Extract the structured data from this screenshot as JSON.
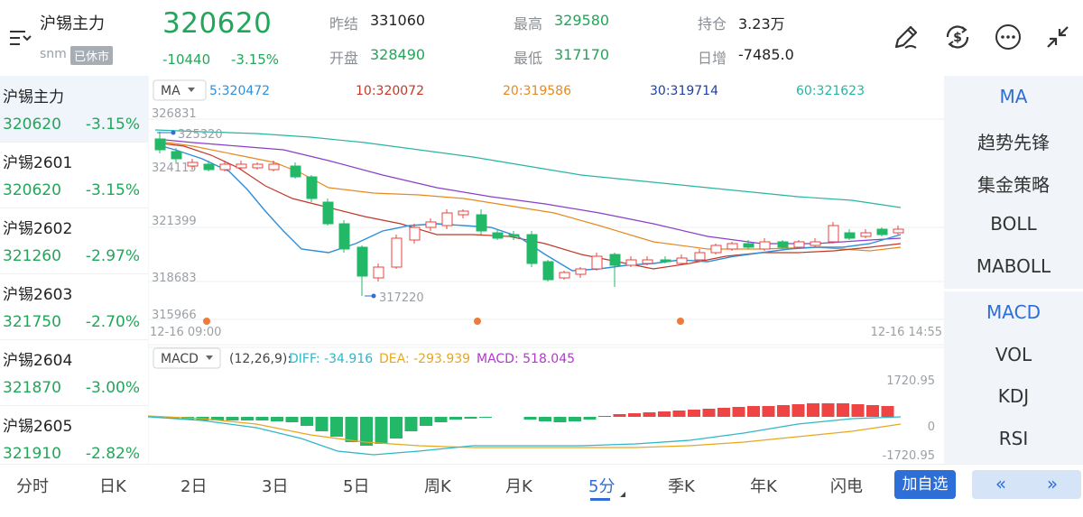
{
  "header": {
    "name": "沪锡主力",
    "symbol": "snm",
    "status_badge": "已休市",
    "price": "320620",
    "change": "-10440",
    "change_pct": "-3.15%",
    "stats": [
      {
        "label": "昨结",
        "value": "331060",
        "tone": "dark"
      },
      {
        "label": "最高",
        "value": "329580",
        "tone": "green"
      },
      {
        "label": "持仓",
        "value": "3.23万",
        "tone": "dark"
      },
      {
        "label": "开盘",
        "value": "328490",
        "tone": "green"
      },
      {
        "label": "最低",
        "value": "317170",
        "tone": "green"
      },
      {
        "label": "日增",
        "value": "-7485.0",
        "tone": "dark"
      }
    ]
  },
  "contracts": [
    {
      "name": "沪锡主力",
      "price": "320620",
      "pct": "-3.15%"
    },
    {
      "name": "沪锡2601",
      "price": "320620",
      "pct": "-3.15%"
    },
    {
      "name": "沪锡2602",
      "price": "321260",
      "pct": "-2.97%"
    },
    {
      "name": "沪锡2603",
      "price": "321750",
      "pct": "-2.70%"
    },
    {
      "name": "沪锡2604",
      "price": "321870",
      "pct": "-3.00%"
    },
    {
      "name": "沪锡2605",
      "price": "321910",
      "pct": "-2.82%"
    }
  ],
  "ma_bar": {
    "label": "MA",
    "items": [
      {
        "text": "5:320472",
        "color": "#2f8fd8"
      },
      {
        "text": "10:320072",
        "color": "#c0392b"
      },
      {
        "text": "20:319586",
        "color": "#e6891f"
      },
      {
        "text": "30:319714",
        "color": "#2040a0"
      },
      {
        "text": "60:321623",
        "color": "#26b5a3"
      }
    ]
  },
  "macd_bar": {
    "label": "MACD",
    "params": "(12,26,9):",
    "diff": "DIFF: -34.916",
    "dea": "DEA: -293.939",
    "macd": "MACD: 518.045"
  },
  "chart_data": {
    "type": "candlestick",
    "y_ticks": [
      "326831",
      "324115",
      "321399",
      "318683",
      "315966"
    ],
    "x_start": "12-16 09:00",
    "x_end": "12-16 14:55",
    "high_marker": "325320",
    "low_marker": "317220",
    "macd_ticks": [
      "1720.95",
      "0",
      "-1720.95"
    ],
    "colors": {
      "up": "#e8433f",
      "down": "#22b868",
      "ma5": "#2f8fd8",
      "ma10": "#c0392b",
      "ma20": "#e6891f",
      "ma30": "#8a3fc8",
      "ma60": "#26b5a3"
    }
  },
  "right_panel": {
    "main_items": [
      "MA",
      "趋势先锋",
      "集金策略",
      "BOLL",
      "MABOLL"
    ],
    "sub_items": [
      "MACD",
      "VOL",
      "KDJ",
      "RSI"
    ]
  },
  "tabs": [
    "分时",
    "日K",
    "2日",
    "3日",
    "5日",
    "周K",
    "月K",
    "5分",
    "季K",
    "年K",
    "闪电"
  ],
  "add_button": "加自选",
  "prev_button": "«",
  "next_button": "»"
}
